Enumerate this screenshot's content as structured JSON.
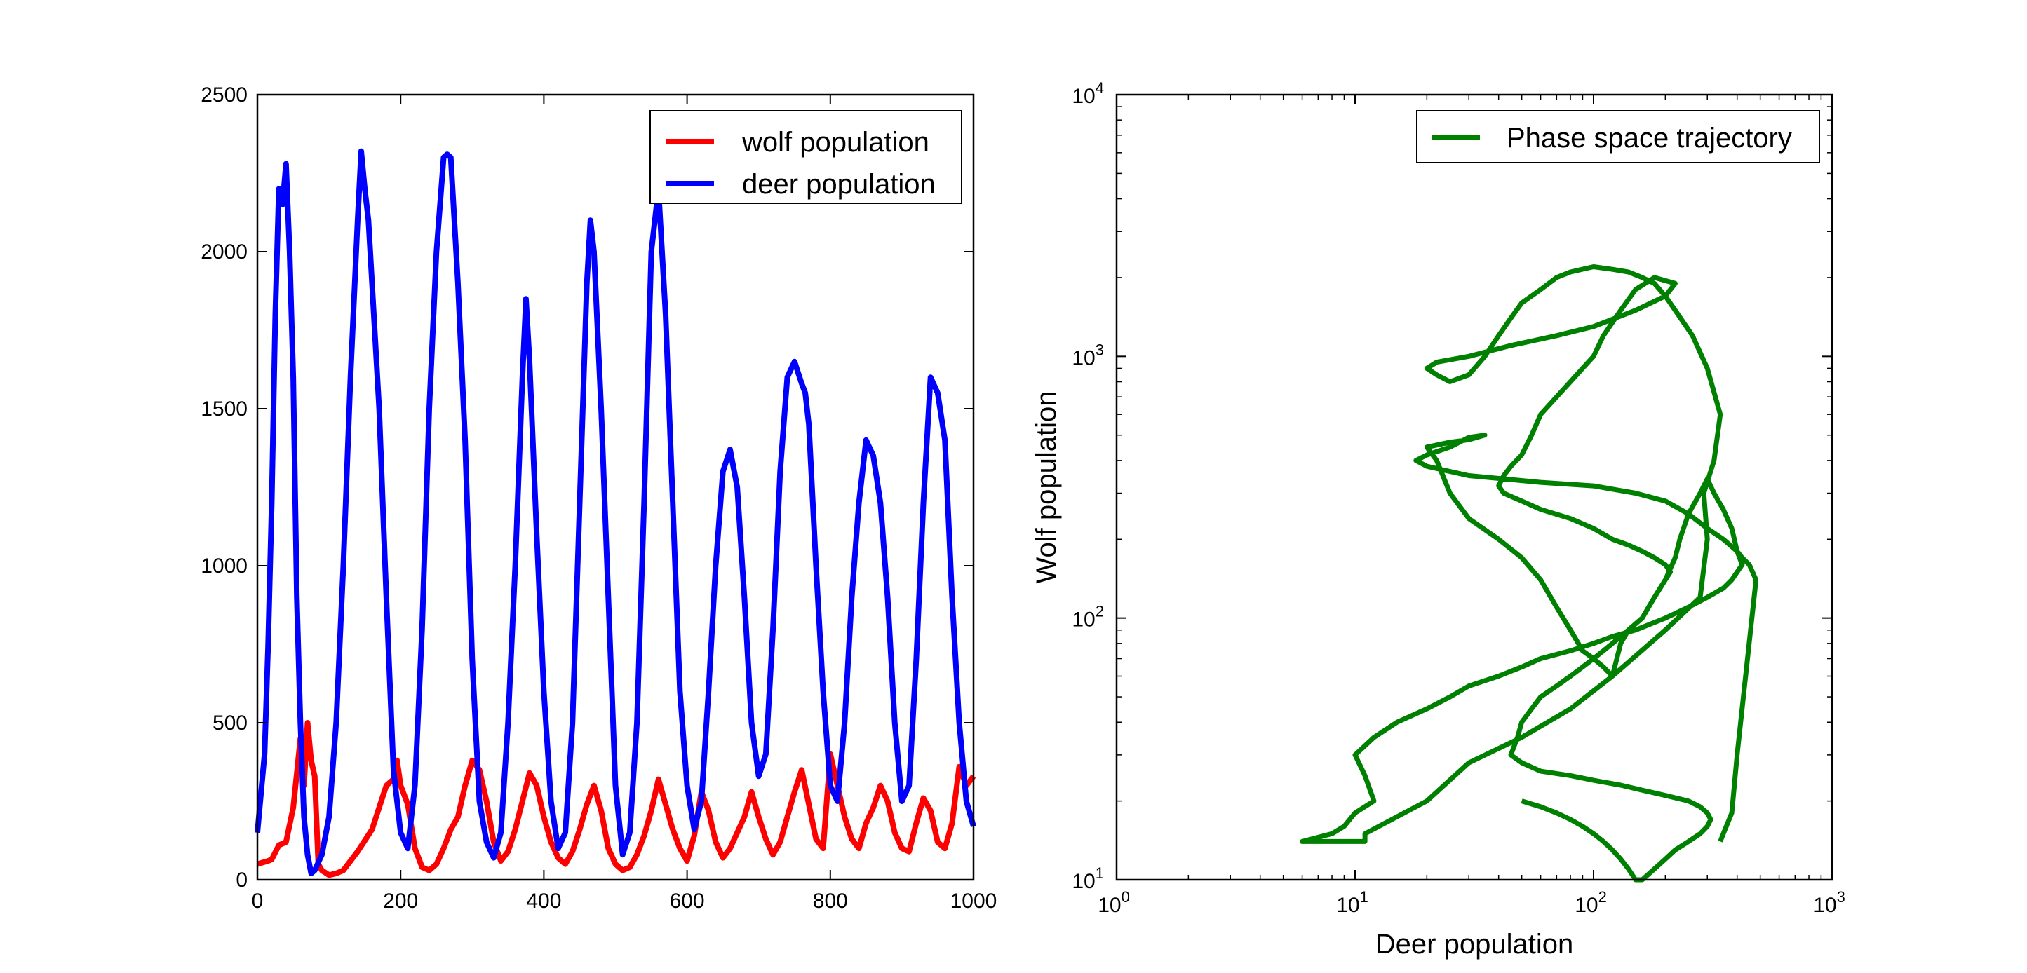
{
  "chart_data": [
    {
      "type": "line",
      "title": "",
      "xlabel": "",
      "ylabel": "",
      "xlim": [
        0,
        1000
      ],
      "ylim": [
        0,
        2500
      ],
      "xticks": [
        0,
        200,
        400,
        600,
        800,
        1000
      ],
      "yticks": [
        0,
        500,
        1000,
        1500,
        2000,
        2500
      ],
      "xtick_labels": [
        "0",
        "200",
        "400",
        "600",
        "800",
        "1000"
      ],
      "ytick_labels": [
        "0",
        "500",
        "1000",
        "1500",
        "2000",
        "2500"
      ],
      "grid": false,
      "legend_position": "top-right",
      "series": [
        {
          "name": "wolf population",
          "color": "#ff0000",
          "x": [
            0,
            15,
            20,
            30,
            40,
            50,
            60,
            65,
            70,
            75,
            80,
            85,
            90,
            100,
            110,
            120,
            140,
            160,
            180,
            190,
            195,
            200,
            210,
            220,
            230,
            240,
            250,
            260,
            270,
            280,
            290,
            300,
            310,
            320,
            330,
            340,
            350,
            360,
            370,
            380,
            390,
            400,
            410,
            420,
            430,
            440,
            450,
            460,
            470,
            480,
            490,
            500,
            510,
            520,
            530,
            540,
            550,
            560,
            570,
            580,
            590,
            600,
            610,
            620,
            630,
            640,
            650,
            660,
            670,
            680,
            690,
            700,
            710,
            720,
            730,
            740,
            750,
            760,
            770,
            780,
            790,
            800,
            810,
            820,
            830,
            840,
            850,
            860,
            870,
            880,
            890,
            900,
            910,
            920,
            930,
            940,
            950,
            960,
            970,
            980,
            990,
            1000
          ],
          "y": [
            50,
            60,
            65,
            110,
            120,
            230,
            450,
            300,
            500,
            380,
            330,
            50,
            30,
            15,
            20,
            30,
            90,
            160,
            300,
            320,
            380,
            300,
            240,
            100,
            40,
            30,
            50,
            100,
            160,
            200,
            300,
            380,
            350,
            250,
            120,
            60,
            90,
            160,
            250,
            340,
            300,
            200,
            120,
            70,
            50,
            90,
            160,
            240,
            300,
            220,
            100,
            50,
            30,
            40,
            80,
            140,
            220,
            320,
            240,
            160,
            100,
            60,
            140,
            280,
            220,
            120,
            70,
            100,
            150,
            200,
            280,
            200,
            130,
            80,
            120,
            200,
            280,
            350,
            240,
            130,
            100,
            400,
            300,
            200,
            130,
            100,
            180,
            230,
            300,
            250,
            150,
            100,
            90,
            180,
            260,
            220,
            120,
            100,
            180,
            360,
            300,
            330
          ]
        },
        {
          "name": "deer population",
          "color": "#0000ff",
          "x": [
            0,
            10,
            15,
            20,
            25,
            30,
            35,
            40,
            45,
            50,
            55,
            60,
            65,
            70,
            75,
            80,
            90,
            100,
            110,
            120,
            130,
            140,
            145,
            150,
            155,
            160,
            170,
            180,
            190,
            200,
            210,
            220,
            230,
            240,
            250,
            260,
            265,
            270,
            280,
            290,
            300,
            310,
            320,
            330,
            340,
            350,
            360,
            370,
            375,
            380,
            390,
            400,
            410,
            420,
            430,
            440,
            450,
            460,
            465,
            470,
            480,
            490,
            500,
            510,
            520,
            530,
            540,
            550,
            560,
            570,
            580,
            590,
            600,
            610,
            620,
            630,
            640,
            650,
            660,
            670,
            680,
            690,
            700,
            710,
            720,
            730,
            740,
            750,
            760,
            765,
            770,
            780,
            790,
            800,
            810,
            820,
            830,
            840,
            850,
            860,
            870,
            880,
            890,
            900,
            910,
            920,
            930,
            940,
            950,
            960,
            970,
            980,
            990,
            1000
          ],
          "y": [
            150,
            400,
            750,
            1200,
            1800,
            2200,
            2150,
            2280,
            2000,
            1600,
            900,
            500,
            200,
            80,
            20,
            30,
            80,
            200,
            500,
            1000,
            1600,
            2100,
            2320,
            2200,
            2100,
            1900,
            1500,
            900,
            350,
            150,
            100,
            300,
            800,
            1500,
            2000,
            2300,
            2310,
            2300,
            1900,
            1400,
            700,
            250,
            120,
            70,
            150,
            500,
            1000,
            1600,
            1850,
            1650,
            1100,
            600,
            250,
            100,
            150,
            500,
            1200,
            1900,
            2100,
            2000,
            1500,
            900,
            300,
            80,
            150,
            500,
            1200,
            2000,
            2200,
            1800,
            1200,
            600,
            300,
            160,
            250,
            600,
            1000,
            1300,
            1370,
            1250,
            900,
            500,
            330,
            400,
            800,
            1300,
            1600,
            1650,
            1580,
            1550,
            1450,
            1000,
            600,
            300,
            250,
            500,
            900,
            1200,
            1400,
            1350,
            1200,
            900,
            500,
            250,
            300,
            700,
            1200,
            1600,
            1550,
            1400,
            900,
            500,
            250,
            170
          ]
        }
      ]
    },
    {
      "type": "line",
      "title": "",
      "xlabel": "Deer population",
      "ylabel": "Wolf population",
      "xscale": "log",
      "yscale": "log",
      "xlim": [
        1,
        1000
      ],
      "ylim": [
        10,
        10000
      ],
      "xticks": [
        1,
        10,
        100,
        1000
      ],
      "yticks": [
        10,
        100,
        1000,
        10000
      ],
      "xtick_labels": [
        {
          "base": "10",
          "exp": "0"
        },
        {
          "base": "10",
          "exp": "1"
        },
        {
          "base": "10",
          "exp": "2"
        },
        {
          "base": "10",
          "exp": "3"
        }
      ],
      "ytick_labels": [
        {
          "base": "10",
          "exp": "1"
        },
        {
          "base": "10",
          "exp": "2"
        },
        {
          "base": "10",
          "exp": "3"
        },
        {
          "base": "10",
          "exp": "4"
        }
      ],
      "grid": false,
      "legend_position": "top-right",
      "series": [
        {
          "name": "Phase space trajectory",
          "color": "#008000",
          "x": [
            340,
            350,
            380,
            400,
            480,
            450,
            420,
            400,
            380,
            350,
            320,
            300,
            280,
            250,
            230,
            220,
            200,
            180,
            160,
            140,
            130,
            120,
            110,
            100,
            90,
            80,
            70,
            60,
            50,
            40,
            30,
            25,
            22,
            20,
            25,
            30,
            35,
            30,
            25,
            20,
            18,
            20,
            30,
            60,
            100,
            150,
            200,
            250,
            300,
            350,
            400,
            420,
            380,
            350,
            300,
            250,
            200,
            150,
            120,
            100,
            80,
            60,
            50,
            40,
            30,
            25,
            20,
            15,
            12,
            10,
            11,
            12,
            10,
            9,
            8,
            6,
            6,
            11,
            11,
            20,
            30,
            50,
            80,
            120,
            200,
            280,
            300,
            290,
            320,
            340,
            300,
            260,
            220,
            200,
            180,
            160,
            140,
            120,
            100,
            80,
            70,
            60,
            50,
            45,
            40,
            35,
            30,
            25,
            22,
            20,
            22,
            30,
            45,
            70,
            100,
            150,
            200,
            220,
            180,
            150,
            130,
            110,
            100,
            90,
            80,
            70,
            60,
            55,
            50,
            45,
            42,
            40,
            42,
            50,
            60,
            80,
            100,
            120,
            140,
            160,
            180,
            200,
            210,
            200,
            190,
            180,
            170,
            160,
            150,
            140,
            130,
            120,
            110,
            100,
            90,
            80,
            70,
            60,
            55,
            50,
            48,
            45,
            50,
            60,
            80,
            100,
            130,
            160,
            200,
            250,
            280,
            300,
            310,
            300,
            280,
            250,
            220,
            200,
            180,
            160,
            150,
            140,
            130,
            120,
            110,
            100,
            90,
            80,
            70,
            60,
            50
          ],
          "y": [
            14,
            15,
            18,
            30,
            140,
            160,
            170,
            180,
            220,
            260,
            300,
            340,
            300,
            250,
            200,
            170,
            140,
            120,
            100,
            90,
            80,
            60,
            65,
            70,
            75,
            90,
            110,
            140,
            170,
            200,
            240,
            300,
            400,
            450,
            470,
            480,
            500,
            490,
            450,
            420,
            400,
            380,
            350,
            330,
            320,
            300,
            280,
            250,
            220,
            200,
            180,
            160,
            140,
            130,
            120,
            110,
            100,
            90,
            85,
            80,
            75,
            70,
            65,
            60,
            55,
            50,
            45,
            40,
            35,
            30,
            25,
            20,
            18,
            16,
            15,
            14,
            14,
            14,
            15,
            20,
            28,
            35,
            45,
            60,
            90,
            120,
            200,
            300,
            400,
            600,
            900,
            1200,
            1500,
            1700,
            1900,
            2000,
            2100,
            2150,
            2200,
            2100,
            2000,
            1800,
            1600,
            1400,
            1200,
            1000,
            850,
            800,
            850,
            900,
            950,
            1000,
            1100,
            1200,
            1300,
            1500,
            1700,
            1900,
            2000,
            1800,
            1500,
            1200,
            1000,
            900,
            800,
            700,
            600,
            500,
            420,
            380,
            350,
            320,
            300,
            280,
            260,
            240,
            220,
            200,
            190,
            180,
            170,
            160,
            150,
            140,
            130,
            120,
            110,
            100,
            95,
            90,
            85,
            80,
            75,
            70,
            65,
            60,
            55,
            50,
            45,
            40,
            35,
            30,
            28,
            26,
            25,
            24,
            23,
            22,
            21,
            20,
            19,
            18,
            17,
            16,
            15,
            14,
            13,
            12,
            11,
            10,
            10,
            11,
            12,
            13,
            14,
            15,
            16,
            17,
            18,
            19,
            20
          ]
        }
      ]
    }
  ]
}
